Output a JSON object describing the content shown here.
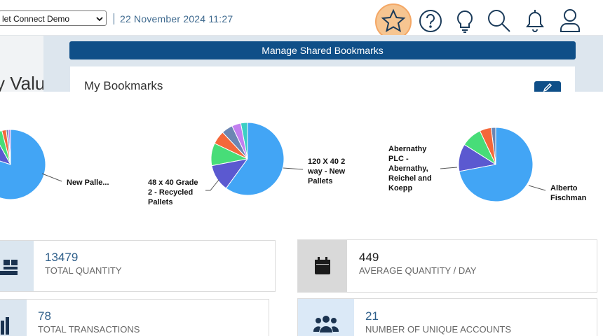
{
  "header": {
    "account_select": "let Connect Demo",
    "datetime": "22 November 2024 11:27"
  },
  "bookmarks_panel": {
    "manage_button": "Manage Shared Bookmarks",
    "my_bookmarks": "My Bookmarks"
  },
  "section_heading": "y Valu",
  "slice_colors": [
    "#42a5f5",
    "#5b59d0",
    "#47dd78",
    "#f4683a",
    "#6c86b3",
    "#c27ff0",
    "#3ccfc4"
  ],
  "pies": [
    {
      "labels": [
        "New Palle..."
      ],
      "slices": [
        80,
        12,
        4,
        2,
        1,
        1
      ]
    },
    {
      "labels": [
        "48 x 40 Grade 2 - Recycled Pallets",
        "120 X 40 2 way - New Pallets"
      ],
      "slices": [
        60,
        12,
        10,
        6,
        5,
        4,
        3
      ]
    },
    {
      "labels": [
        "Abernathy PLC - Abernathy, Reichel and Koepp",
        "Alberto Fischman"
      ],
      "slices": [
        72,
        12,
        9,
        5,
        2
      ]
    }
  ],
  "stats": [
    {
      "value": "13479",
      "label": "TOTAL QUANTITY"
    },
    {
      "value": "449",
      "label": "AVERAGE QUANTITY / DAY"
    },
    {
      "value": "78",
      "label": "TOTAL TRANSACTIONS"
    },
    {
      "value": "21",
      "label": "NUMBER OF UNIQUE ACCOUNTS"
    }
  ]
}
